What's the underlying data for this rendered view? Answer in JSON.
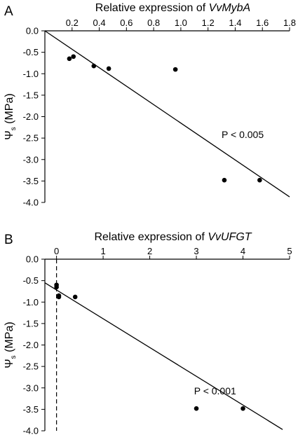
{
  "chart_data": [
    {
      "type": "scatter",
      "panel_label": "A",
      "title_prefix": "Relative expression of ",
      "title_gene": "VvMybA",
      "x_ticks": [
        "0.2",
        "0.4",
        "0.6",
        "0.8",
        "1.0",
        "1.2",
        "1.4",
        "1.6",
        "1.8"
      ],
      "y_ticks": [
        "0.0",
        "-0.5",
        "-1.0",
        "-1.5",
        "-2.0",
        "-2.5",
        "-3.0",
        "-3.5",
        "-4.0"
      ],
      "xlim": [
        0,
        1.8
      ],
      "ylim": [
        -4.0,
        0.0
      ],
      "x_axis_position": "top",
      "ylabel_symbol": "Ψ",
      "ylabel_sub": "s",
      "ylabel_unit": " (MPa)",
      "points": [
        {
          "x": 0.18,
          "y": -0.65
        },
        {
          "x": 0.21,
          "y": -0.6
        },
        {
          "x": 0.36,
          "y": -0.82
        },
        {
          "x": 0.47,
          "y": -0.88
        },
        {
          "x": 0.96,
          "y": -0.9
        },
        {
          "x": 1.32,
          "y": -3.48
        },
        {
          "x": 1.58,
          "y": -3.48
        }
      ],
      "fit_line": {
        "x0": 0.0,
        "y0": 0.0,
        "x1": 1.8,
        "y1": -3.87
      },
      "dashed_line_x": null,
      "annotation": "P < 0.005",
      "annotation_pos": {
        "x": 1.3,
        "y": -2.5
      }
    },
    {
      "type": "scatter",
      "panel_label": "B",
      "title_prefix": "Relative expression of ",
      "title_gene": "VvUFGT",
      "x_ticks": [
        "0",
        "1",
        "2",
        "3",
        "4",
        "5"
      ],
      "y_ticks": [
        "0.0",
        "-0.5",
        "-1.0",
        "-1.5",
        "-2.0",
        "-2.5",
        "-3.0",
        "-3.5",
        "-4.0"
      ],
      "xlim": [
        -0.25,
        5
      ],
      "ylim": [
        -4.0,
        0.0
      ],
      "x_axis_position": "top",
      "ylabel_symbol": "Ψ",
      "ylabel_sub": "s",
      "ylabel_unit": " (MPa)",
      "points": [
        {
          "x": 0.0,
          "y": -0.6
        },
        {
          "x": 0.0,
          "y": -0.65
        },
        {
          "x": 0.05,
          "y": -0.85
        },
        {
          "x": 0.05,
          "y": -0.88
        },
        {
          "x": 0.4,
          "y": -0.88
        },
        {
          "x": 3.0,
          "y": -3.48
        },
        {
          "x": 4.0,
          "y": -3.48
        }
      ],
      "fit_line": {
        "x0": -0.25,
        "y0": -0.55,
        "x1": 4.85,
        "y1": -3.97
      },
      "dashed_line_x": 0,
      "annotation": "P < 0.001",
      "annotation_pos": {
        "x": 2.95,
        "y": -3.15
      }
    }
  ]
}
